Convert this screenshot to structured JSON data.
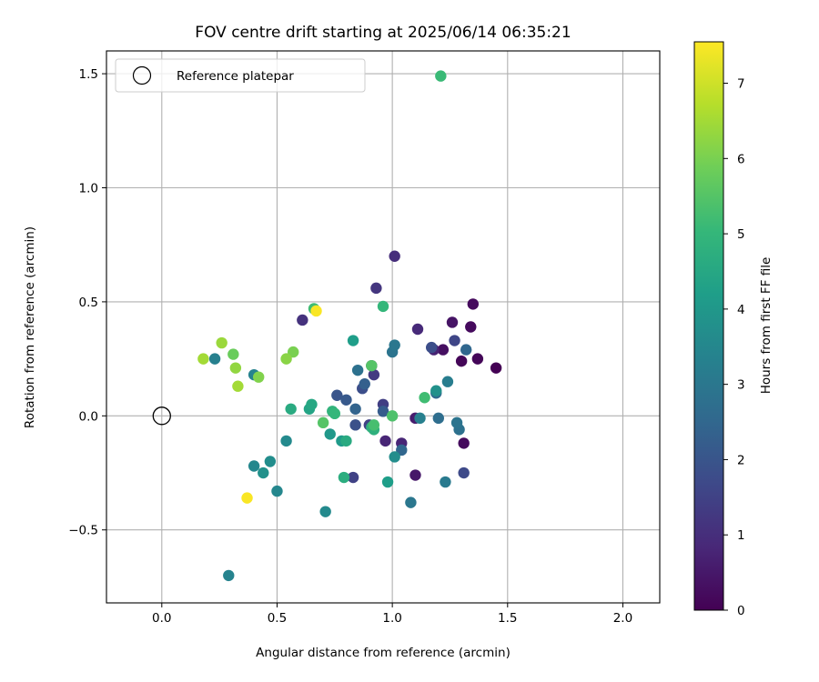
{
  "chart_data": {
    "type": "scatter",
    "title": "FOV centre drift starting at 2025/06/14 06:35:21",
    "xlabel": "Angular distance from reference (arcmin)",
    "ylabel": "Rotation from reference (arcmin)",
    "xlim": [
      -0.24,
      2.16
    ],
    "ylim": [
      -0.82,
      1.6
    ],
    "xticks": [
      0.0,
      0.5,
      1.0,
      1.5,
      2.0
    ],
    "xtick_labels": [
      "0.0",
      "0.5",
      "1.0",
      "1.5",
      "2.0"
    ],
    "yticks": [
      -0.5,
      0.0,
      0.5,
      1.0,
      1.5
    ],
    "ytick_labels": [
      "−0.5",
      "0.0",
      "0.5",
      "1.0",
      "1.5"
    ],
    "grid": true,
    "legend": {
      "position": "top-left",
      "entries": [
        "Reference platepar"
      ]
    },
    "reference_point": {
      "x": 0.0,
      "y": 0.0,
      "label": "Reference platepar"
    },
    "colorbar": {
      "label": "Hours from first FF file",
      "range": [
        0,
        7.55
      ],
      "ticks": [
        0,
        1,
        2,
        3,
        4,
        5,
        6,
        7
      ],
      "tick_labels": [
        "0",
        "1",
        "2",
        "3",
        "4",
        "5",
        "6",
        "7"
      ],
      "colormap": "viridis"
    },
    "points": [
      {
        "x": 1.45,
        "y": 0.21,
        "c": 0.0
      },
      {
        "x": 1.37,
        "y": 0.25,
        "c": 0.1
      },
      {
        "x": 1.3,
        "y": 0.24,
        "c": 0.1
      },
      {
        "x": 1.35,
        "y": 0.49,
        "c": 0.2
      },
      {
        "x": 1.34,
        "y": 0.39,
        "c": 0.2
      },
      {
        "x": 1.31,
        "y": -0.12,
        "c": 0.2
      },
      {
        "x": 1.22,
        "y": 0.29,
        "c": 0.3
      },
      {
        "x": 1.26,
        "y": 0.41,
        "c": 0.4
      },
      {
        "x": 1.1,
        "y": -0.26,
        "c": 0.5
      },
      {
        "x": 1.1,
        "y": -0.01,
        "c": 0.6
      },
      {
        "x": 1.18,
        "y": 0.29,
        "c": 0.7
      },
      {
        "x": 1.04,
        "y": -0.12,
        "c": 0.8
      },
      {
        "x": 0.97,
        "y": -0.11,
        "c": 0.8
      },
      {
        "x": 0.91,
        "y": 0.22,
        "c": 0.9
      },
      {
        "x": 1.11,
        "y": 0.38,
        "c": 0.9
      },
      {
        "x": 1.01,
        "y": 0.7,
        "c": 1.0
      },
      {
        "x": 0.61,
        "y": 0.42,
        "c": 1.1
      },
      {
        "x": 0.93,
        "y": 0.56,
        "c": 1.2
      },
      {
        "x": 0.92,
        "y": 0.18,
        "c": 1.3
      },
      {
        "x": 0.96,
        "y": 0.05,
        "c": 1.4
      },
      {
        "x": 0.9,
        "y": -0.04,
        "c": 1.5
      },
      {
        "x": 0.83,
        "y": -0.27,
        "c": 1.5
      },
      {
        "x": 1.27,
        "y": 0.33,
        "c": 1.6
      },
      {
        "x": 1.31,
        "y": -0.25,
        "c": 1.7
      },
      {
        "x": 1.17,
        "y": 0.3,
        "c": 1.8
      },
      {
        "x": 0.87,
        "y": 0.12,
        "c": 1.8
      },
      {
        "x": 0.84,
        "y": -0.04,
        "c": 1.9
      },
      {
        "x": 0.76,
        "y": 0.09,
        "c": 2.0
      },
      {
        "x": 0.8,
        "y": 0.07,
        "c": 2.1
      },
      {
        "x": 0.96,
        "y": 0.02,
        "c": 2.2
      },
      {
        "x": 0.88,
        "y": 0.14,
        "c": 2.3
      },
      {
        "x": 0.84,
        "y": 0.03,
        "c": 2.4
      },
      {
        "x": 1.04,
        "y": -0.15,
        "c": 2.5
      },
      {
        "x": 1.32,
        "y": 0.29,
        "c": 2.5
      },
      {
        "x": 1.19,
        "y": 0.1,
        "c": 2.6
      },
      {
        "x": 1.2,
        "y": -0.01,
        "c": 2.7
      },
      {
        "x": 1.29,
        "y": -0.06,
        "c": 2.8
      },
      {
        "x": 1.28,
        "y": -0.03,
        "c": 2.9
      },
      {
        "x": 0.85,
        "y": 0.2,
        "c": 2.8
      },
      {
        "x": 1.0,
        "y": 0.28,
        "c": 2.9
      },
      {
        "x": 1.01,
        "y": 0.31,
        "c": 3.0
      },
      {
        "x": 1.08,
        "y": -0.38,
        "c": 3.0
      },
      {
        "x": 1.23,
        "y": -0.29,
        "c": 3.1
      },
      {
        "x": 1.24,
        "y": 0.15,
        "c": 3.2
      },
      {
        "x": 1.12,
        "y": -0.01,
        "c": 3.3
      },
      {
        "x": 0.23,
        "y": 0.25,
        "c": 3.3
      },
      {
        "x": 0.4,
        "y": 0.18,
        "c": 3.4
      },
      {
        "x": 0.29,
        "y": -0.7,
        "c": 3.4
      },
      {
        "x": 0.4,
        "y": -0.22,
        "c": 3.5
      },
      {
        "x": 0.5,
        "y": -0.33,
        "c": 3.5
      },
      {
        "x": 0.54,
        "y": -0.11,
        "c": 3.6
      },
      {
        "x": 0.71,
        "y": -0.42,
        "c": 3.6
      },
      {
        "x": 1.01,
        "y": -0.18,
        "c": 3.7
      },
      {
        "x": 0.47,
        "y": -0.2,
        "c": 3.7
      },
      {
        "x": 0.44,
        "y": -0.25,
        "c": 3.8
      },
      {
        "x": 1.19,
        "y": 0.11,
        "c": 3.8
      },
      {
        "x": 0.73,
        "y": -0.08,
        "c": 4.0
      },
      {
        "x": 0.78,
        "y": -0.11,
        "c": 4.1
      },
      {
        "x": 0.98,
        "y": -0.29,
        "c": 4.2
      },
      {
        "x": 0.83,
        "y": 0.33,
        "c": 4.2
      },
      {
        "x": 0.64,
        "y": 0.03,
        "c": 4.4
      },
      {
        "x": 0.65,
        "y": 0.05,
        "c": 4.5
      },
      {
        "x": 0.56,
        "y": 0.03,
        "c": 4.6
      },
      {
        "x": 0.8,
        "y": -0.11,
        "c": 4.6
      },
      {
        "x": 0.79,
        "y": -0.27,
        "c": 4.7
      },
      {
        "x": 0.91,
        "y": -0.05,
        "c": 4.8
      },
      {
        "x": 0.92,
        "y": -0.06,
        "c": 4.8
      },
      {
        "x": 0.74,
        "y": 0.02,
        "c": 4.9
      },
      {
        "x": 0.75,
        "y": 0.01,
        "c": 5.0
      },
      {
        "x": 0.96,
        "y": 0.48,
        "c": 5.0
      },
      {
        "x": 1.21,
        "y": 1.49,
        "c": 5.1
      },
      {
        "x": 0.66,
        "y": 0.47,
        "c": 5.2
      },
      {
        "x": 1.14,
        "y": 0.08,
        "c": 5.2
      },
      {
        "x": 0.92,
        "y": -0.04,
        "c": 5.3
      },
      {
        "x": 1.0,
        "y": 0.0,
        "c": 5.4
      },
      {
        "x": 0.7,
        "y": -0.03,
        "c": 5.5
      },
      {
        "x": 0.91,
        "y": 0.22,
        "c": 5.5
      },
      {
        "x": 0.31,
        "y": 0.27,
        "c": 5.8
      },
      {
        "x": 0.57,
        "y": 0.28,
        "c": 6.0
      },
      {
        "x": 0.42,
        "y": 0.17,
        "c": 6.1
      },
      {
        "x": 0.54,
        "y": 0.25,
        "c": 6.2
      },
      {
        "x": 0.32,
        "y": 0.21,
        "c": 6.3
      },
      {
        "x": 0.26,
        "y": 0.32,
        "c": 6.4
      },
      {
        "x": 0.18,
        "y": 0.25,
        "c": 6.5
      },
      {
        "x": 0.33,
        "y": 0.13,
        "c": 6.5
      },
      {
        "x": 0.67,
        "y": 0.46,
        "c": 7.5
      },
      {
        "x": 0.37,
        "y": -0.36,
        "c": 7.5
      }
    ]
  },
  "colors": {
    "grid": "#b0b0b0",
    "axes": "#000000",
    "legend_border": "#cccccc"
  }
}
